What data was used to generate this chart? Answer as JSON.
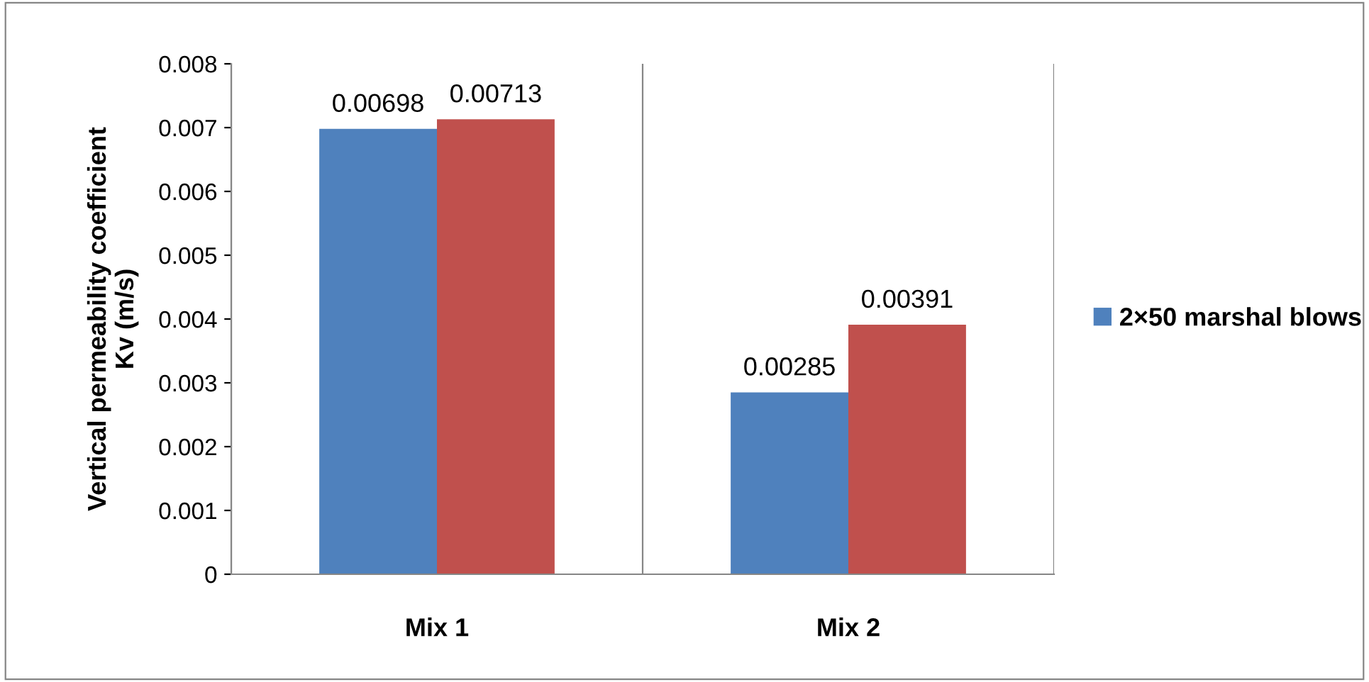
{
  "chart_data": {
    "type": "bar",
    "ylabel": "Vertical permeability coefficient\nKv (m/s)",
    "categories": [
      "Mix 1",
      "Mix 2"
    ],
    "series": [
      {
        "name": "2×50 marshal blows",
        "color": "#4f81bd",
        "values": [
          0.00698,
          0.00285
        ]
      },
      {
        "color": "#c0504d",
        "values": [
          0.00713,
          0.00391
        ]
      }
    ],
    "ylim": [
      0,
      0.008
    ],
    "yticks": [
      0,
      0.001,
      0.002,
      0.003,
      0.004,
      0.005,
      0.006,
      0.007,
      0.008
    ],
    "grid": "x",
    "legend": "right",
    "data_labels": true
  }
}
